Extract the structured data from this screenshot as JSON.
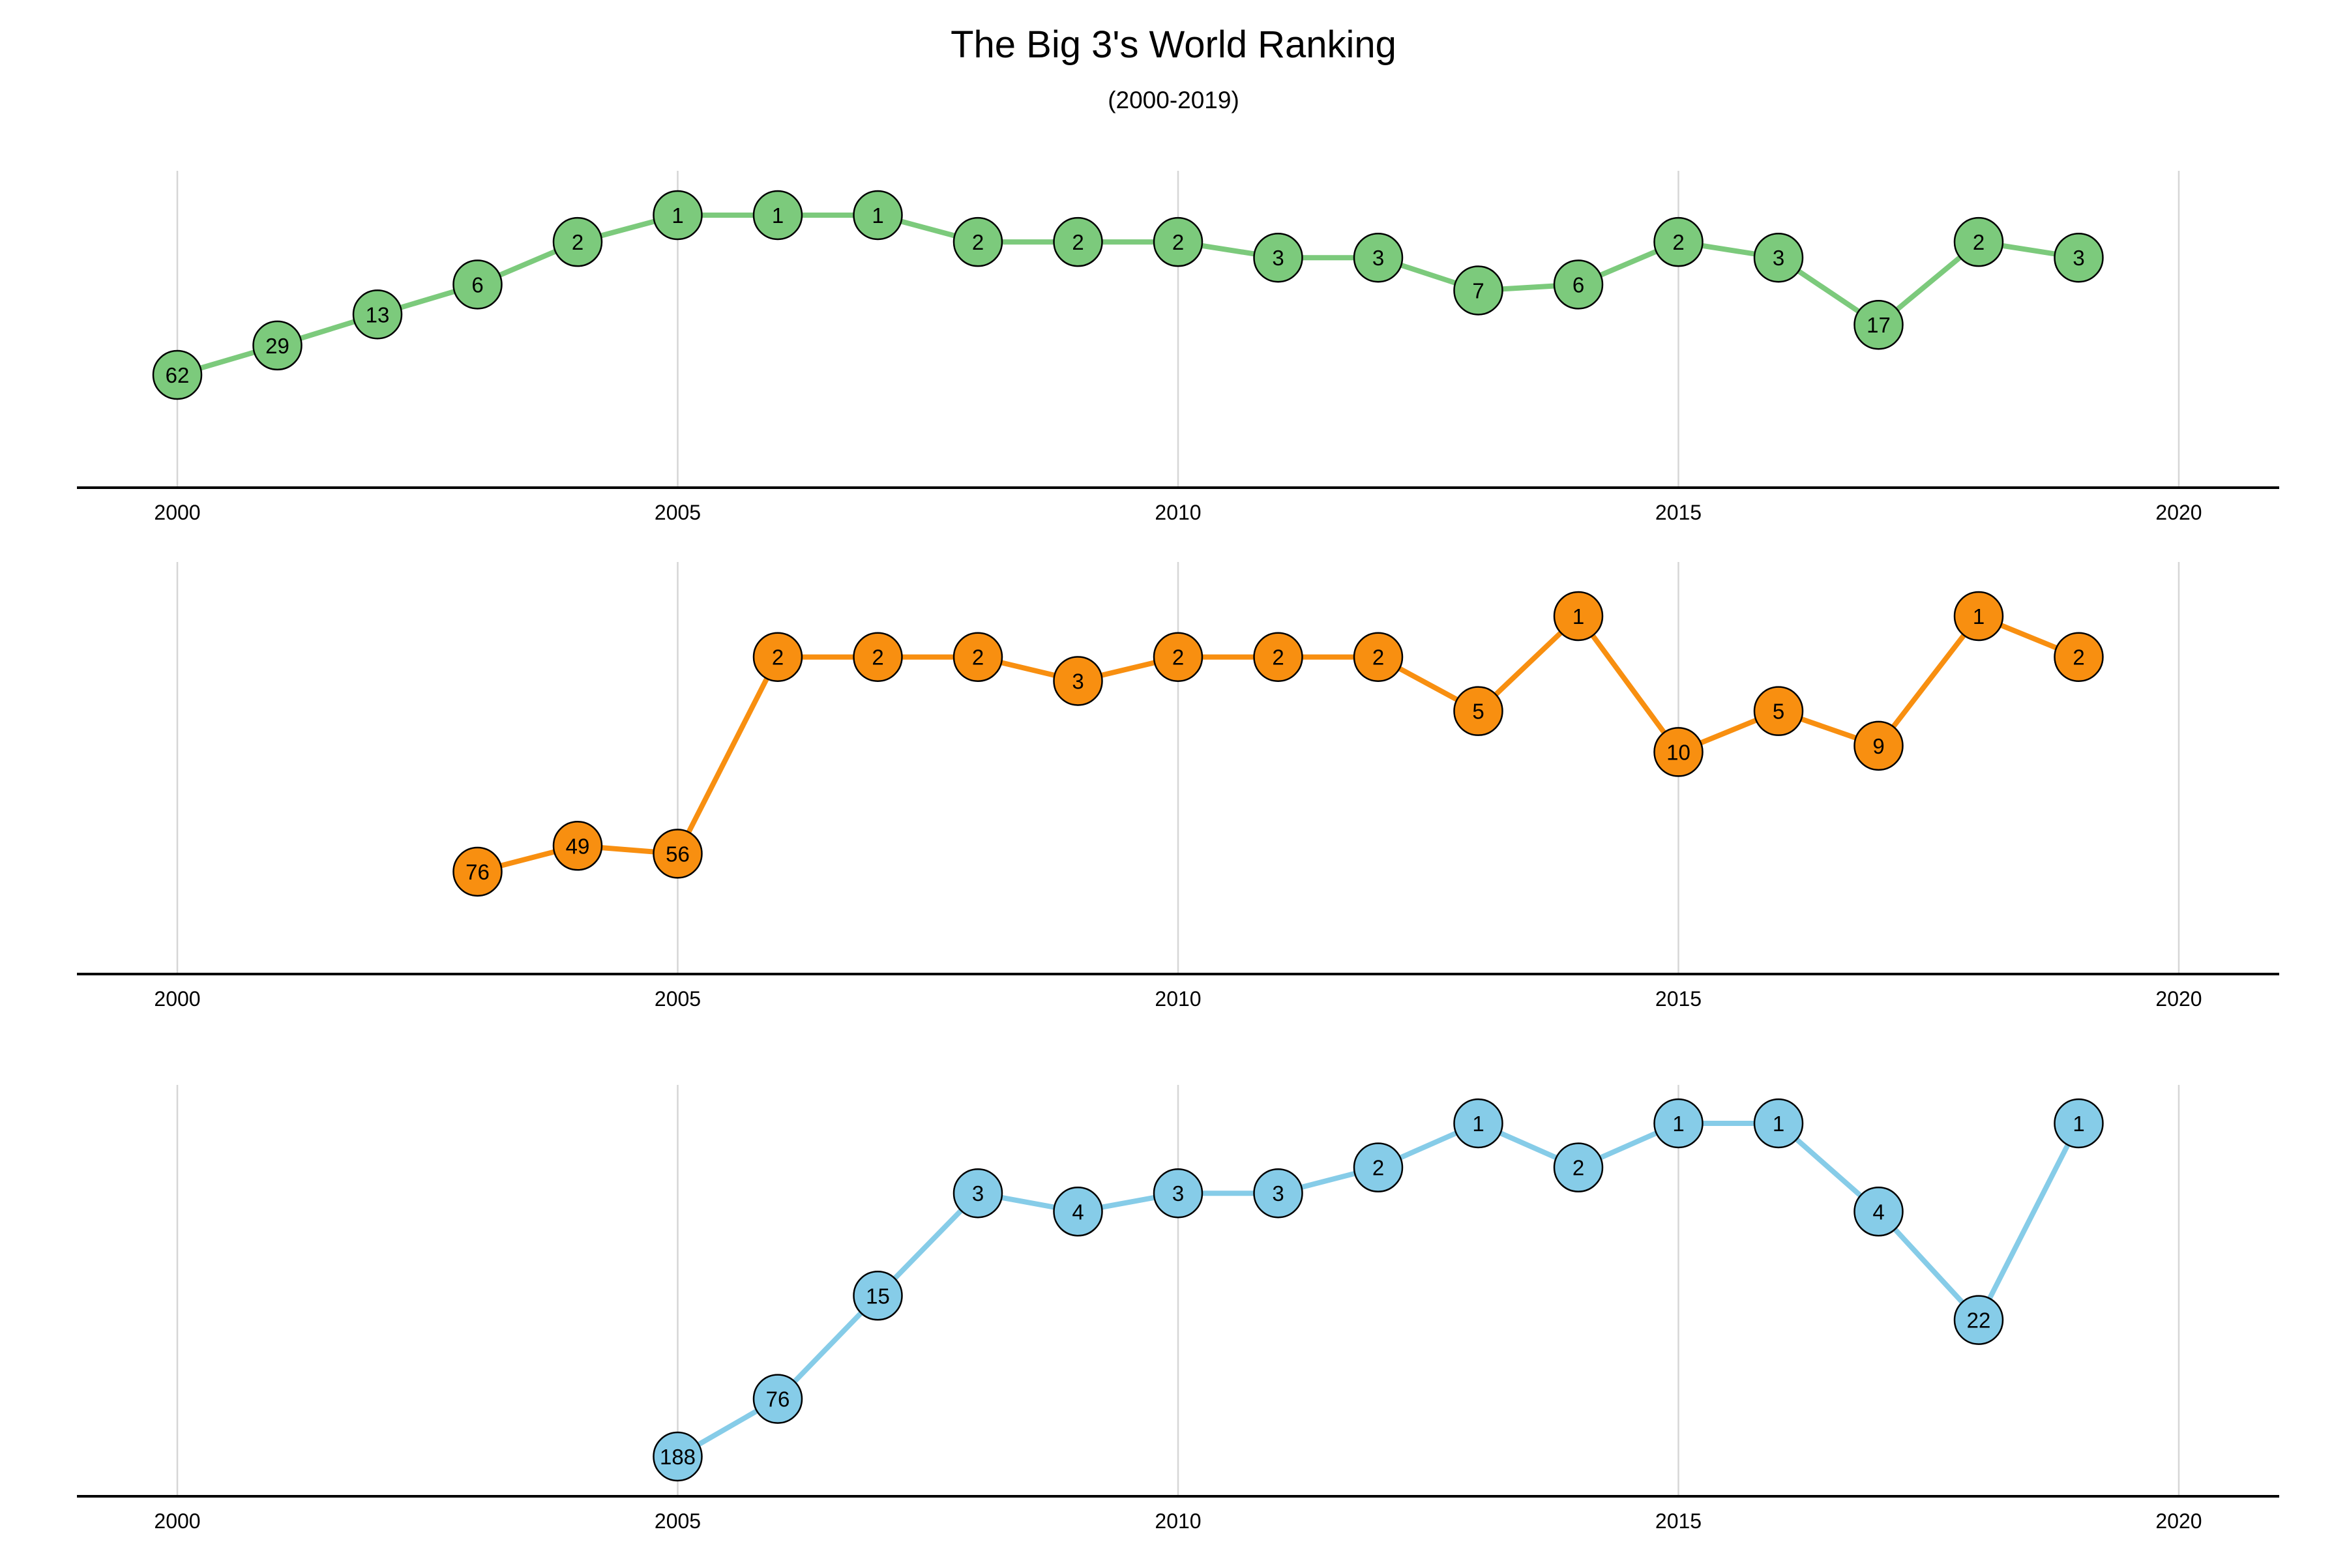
{
  "chart_data": {
    "type": "line",
    "title": "The Big 3's World Ranking",
    "subtitle": "(2000-2019)",
    "xlim": [
      2000,
      2020
    ],
    "xticks": [
      "2000",
      "2005",
      "2010",
      "2015",
      "2020"
    ],
    "grid": "vertical",
    "ranking_axis": "reversed",
    "panels": [
      {
        "color": "#7cca7c",
        "x": [
          2000,
          2001,
          2002,
          2003,
          2004,
          2005,
          2006,
          2007,
          2008,
          2009,
          2010,
          2011,
          2012,
          2013,
          2014,
          2015,
          2016,
          2017,
          2018,
          2019
        ],
        "values": [
          62,
          29,
          13,
          6,
          2,
          1,
          1,
          1,
          2,
          2,
          2,
          3,
          3,
          7,
          6,
          2,
          3,
          17,
          2,
          3
        ]
      },
      {
        "color": "#f88f10",
        "x": [
          2003,
          2004,
          2005,
          2006,
          2007,
          2008,
          2009,
          2010,
          2011,
          2012,
          2013,
          2014,
          2015,
          2016,
          2017,
          2018,
          2019
        ],
        "values": [
          76,
          49,
          56,
          2,
          2,
          2,
          3,
          2,
          2,
          2,
          5,
          1,
          10,
          5,
          9,
          1,
          2
        ]
      },
      {
        "color": "#86cce8",
        "x": [
          2005,
          2006,
          2007,
          2008,
          2009,
          2010,
          2011,
          2012,
          2013,
          2014,
          2015,
          2016,
          2017,
          2018,
          2019
        ],
        "values": [
          188,
          76,
          15,
          3,
          4,
          3,
          3,
          2,
          1,
          2,
          1,
          1,
          4,
          22,
          1
        ]
      }
    ]
  }
}
